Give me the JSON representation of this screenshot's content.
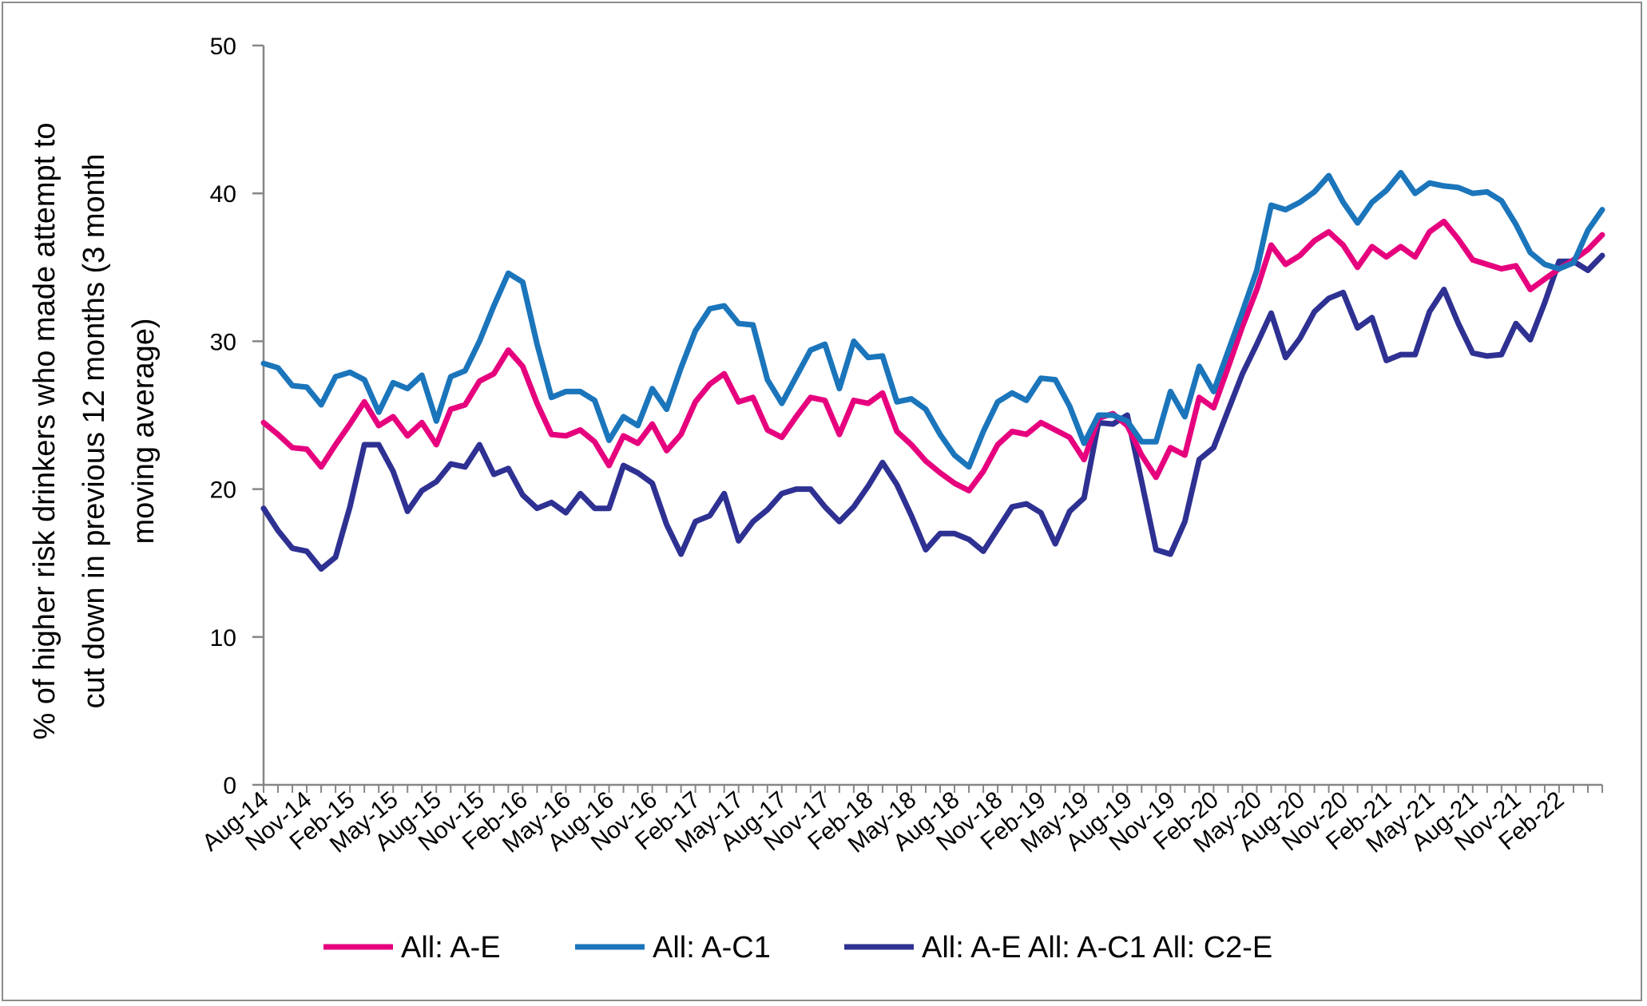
{
  "chart_data": {
    "type": "line",
    "title": "",
    "xlabel": "",
    "ylabel_lines": [
      "% of higher risk drinkers who made attempt to",
      "cut down in previous 12 months (3 month",
      "moving average)"
    ],
    "ylim": [
      0,
      50
    ],
    "yticks": [
      0,
      10,
      20,
      30,
      40,
      50
    ],
    "grid": false,
    "legend_position": "bottom",
    "x_tick_labels": [
      "Aug-14",
      "Nov-14",
      "Feb-15",
      "May-15",
      "Aug-15",
      "Nov-15",
      "Feb-16",
      "May-16",
      "Aug-16",
      "Nov-16",
      "Feb-17",
      "May-17",
      "Aug-17",
      "Nov-17",
      "Feb-18",
      "May-18",
      "Aug-18",
      "Nov-18",
      "Feb-19",
      "May-19",
      "Aug-19",
      "Nov-19",
      "Feb-20",
      "May-20",
      "Aug-20",
      "Nov-20",
      "Feb-21",
      "May-21",
      "Aug-21",
      "Nov-21",
      "Feb-22"
    ],
    "n_points": 94,
    "series": [
      {
        "name": "All: A-E",
        "color": "#e6007e",
        "values": [
          24.5,
          23.7,
          22.8,
          22.7,
          21.5,
          23.0,
          24.4,
          25.9,
          24.3,
          24.9,
          23.6,
          24.5,
          23.0,
          25.4,
          25.7,
          27.3,
          27.8,
          29.4,
          28.3,
          25.8,
          23.7,
          23.6,
          24.0,
          23.2,
          21.6,
          23.6,
          23.1,
          24.4,
          22.6,
          23.7,
          25.9,
          27.1,
          27.8,
          25.9,
          26.2,
          24.0,
          23.5,
          24.9,
          26.2,
          26.0,
          23.7,
          26.0,
          25.8,
          26.5,
          23.9,
          23.0,
          21.9,
          21.1,
          20.4,
          19.9,
          21.2,
          23.0,
          23.9,
          23.7,
          24.5,
          24.0,
          23.5,
          22.0,
          24.8,
          25.1,
          24.3,
          22.3,
          20.8,
          22.8,
          22.3,
          26.2,
          25.5,
          28.2,
          31.0,
          33.5,
          36.5,
          35.2,
          35.8,
          36.8,
          37.4,
          36.5,
          35.0,
          36.4,
          35.7,
          36.4,
          35.7,
          37.4,
          38.1,
          36.9,
          35.5,
          35.2,
          34.9,
          35.1,
          33.5,
          34.2,
          34.9,
          35.5,
          36.2,
          37.2
        ]
      },
      {
        "name": "All: A-C1",
        "color": "#1b75bb",
        "values": [
          28.5,
          28.2,
          27.0,
          26.9,
          25.7,
          27.6,
          27.9,
          27.4,
          25.2,
          27.2,
          26.8,
          27.7,
          24.6,
          27.6,
          28.0,
          30.0,
          32.4,
          34.6,
          34.0,
          29.8,
          26.2,
          26.6,
          26.6,
          26.0,
          23.3,
          24.9,
          24.3,
          26.8,
          25.4,
          28.2,
          30.7,
          32.2,
          32.4,
          31.2,
          31.1,
          27.4,
          25.8,
          27.6,
          29.4,
          29.8,
          26.8,
          30.0,
          28.9,
          29.0,
          25.9,
          26.1,
          25.4,
          23.7,
          22.3,
          21.5,
          23.9,
          25.9,
          26.5,
          26.0,
          27.5,
          27.4,
          25.6,
          23.1,
          25.0,
          25.0,
          24.6,
          23.2,
          23.2,
          26.6,
          24.9,
          28.3,
          26.6,
          29.3,
          32.0,
          34.8,
          39.2,
          38.9,
          39.4,
          40.1,
          41.2,
          39.4,
          38.0,
          39.4,
          40.2,
          41.4,
          40.0,
          40.7,
          40.5,
          40.4,
          40.0,
          40.1,
          39.5,
          37.9,
          36.0,
          35.2,
          34.9,
          35.3,
          37.5,
          38.9
        ]
      },
      {
        "name": "All: A-E All: A-C1 All: C2-E",
        "color": "#2e3192",
        "values": [
          18.7,
          17.2,
          16.0,
          15.8,
          14.6,
          15.4,
          18.8,
          23.0,
          23.0,
          21.2,
          18.5,
          19.9,
          20.5,
          21.7,
          21.5,
          23.0,
          21.0,
          21.4,
          19.6,
          18.7,
          19.1,
          18.4,
          19.7,
          18.7,
          18.7,
          21.6,
          21.1,
          20.4,
          17.6,
          15.6,
          17.8,
          18.2,
          19.7,
          16.5,
          17.8,
          18.6,
          19.7,
          20.0,
          20.0,
          18.8,
          17.8,
          18.8,
          20.2,
          21.8,
          20.3,
          18.2,
          15.9,
          17.0,
          17.0,
          16.6,
          15.8,
          17.3,
          18.8,
          19.0,
          18.4,
          16.3,
          18.5,
          19.4,
          24.5,
          24.4,
          25.0,
          20.5,
          15.9,
          15.6,
          17.8,
          22.0,
          22.8,
          25.3,
          27.8,
          29.8,
          31.9,
          28.9,
          30.2,
          32.0,
          32.9,
          33.3,
          30.9,
          31.6,
          28.7,
          29.1,
          29.1,
          32.0,
          33.5,
          31.2,
          29.2,
          29.0,
          29.1,
          31.2,
          30.1,
          32.6,
          35.4,
          35.4,
          34.8,
          35.8
        ]
      }
    ]
  }
}
